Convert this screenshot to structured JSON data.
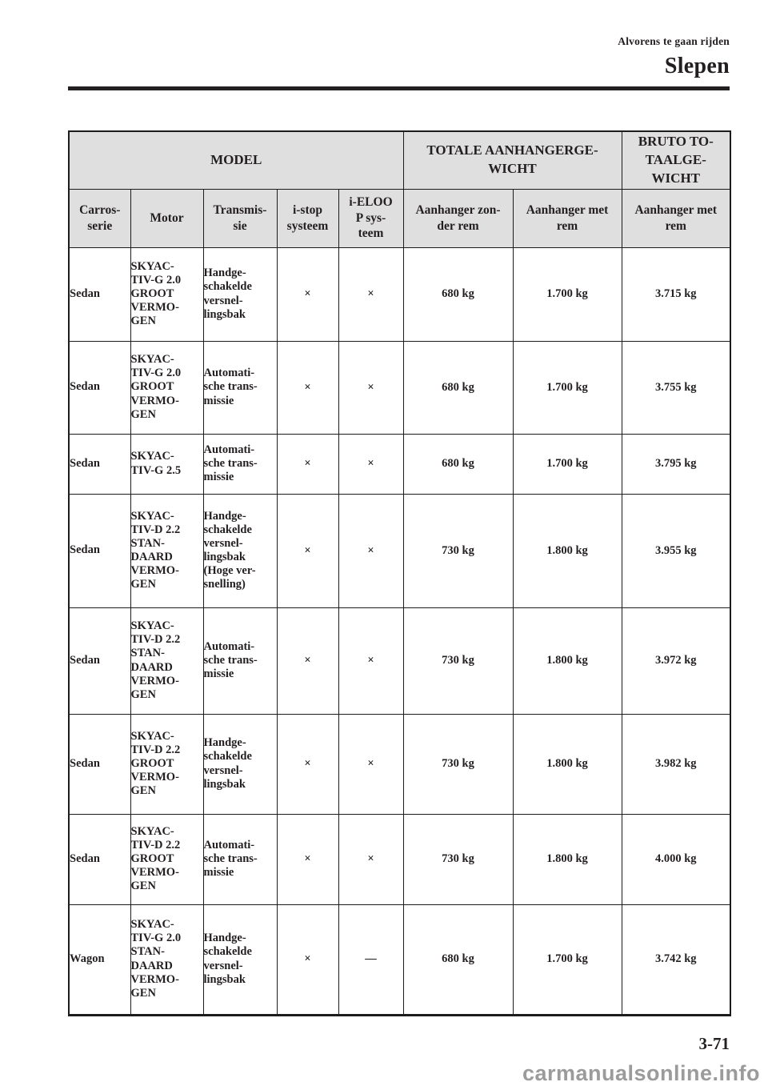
{
  "header": {
    "section": "Alvorens te gaan rijden",
    "title": "Slepen"
  },
  "footer": {
    "page_number": "3-71",
    "watermark": "carmanualsonline.info"
  },
  "colors": {
    "text": "#231f20",
    "table_border": "#1c1c1c",
    "header_cell_bg": "#dfdfdf",
    "watermark_gray": "#9b9b9b",
    "page_bg": "#ffffff"
  },
  "table": {
    "header_groups": [
      {
        "label": "MODEL"
      },
      {
        "label": "TOTALE AANHANGERGE-\nWICHT"
      },
      {
        "label": "BRUTO TO-\nTAALGE-\nWICHT"
      }
    ],
    "columns": [
      {
        "label": "Carros-\nserie"
      },
      {
        "label": "Motor"
      },
      {
        "label": "Transmis-\nsie"
      },
      {
        "label": "i-stop\nsysteem"
      },
      {
        "label": "i-ELOO\nP sys-\nteem"
      },
      {
        "label": "Aanhanger zon-\nder rem"
      },
      {
        "label": "Aanhanger met\nrem"
      },
      {
        "label": "Aanhanger met\nrem"
      }
    ],
    "rows": [
      {
        "carrosserie": "Sedan",
        "motor": "SKYAC-\nTIV-G 2.0\nGROOT\nVERMO-\nGEN",
        "transmissie": "Handge-\nschakelde\nversnel-\nlingsbak",
        "i_stop": "×",
        "i_eloop": "×",
        "zonder_rem": "680 kg",
        "met_rem": "1.700 kg",
        "bruto": "3.715 kg"
      },
      {
        "carrosserie": "Sedan",
        "motor": "SKYAC-\nTIV-G 2.0\nGROOT\nVERMO-\nGEN",
        "transmissie": "Automati-\nsche trans-\nmissie",
        "i_stop": "×",
        "i_eloop": "×",
        "zonder_rem": "680 kg",
        "met_rem": "1.700 kg",
        "bruto": "3.755 kg"
      },
      {
        "carrosserie": "Sedan",
        "motor": "SKYAC-\nTIV-G 2.5",
        "transmissie": "Automati-\nsche trans-\nmissie",
        "i_stop": "×",
        "i_eloop": "×",
        "zonder_rem": "680 kg",
        "met_rem": "1.700 kg",
        "bruto": "3.795 kg"
      },
      {
        "carrosserie": "Sedan",
        "motor": "SKYAC-\nTIV-D 2.2\nSTAN-\nDAARD\nVERMO-\nGEN",
        "transmissie": "Handge-\nschakelde\nversnel-\nlingsbak\n(Hoge ver-\nsnelling)",
        "i_stop": "×",
        "i_eloop": "×",
        "zonder_rem": "730 kg",
        "met_rem": "1.800 kg",
        "bruto": "3.955 kg"
      },
      {
        "carrosserie": "Sedan",
        "motor": "SKYAC-\nTIV-D 2.2\nSTAN-\nDAARD\nVERMO-\nGEN",
        "transmissie": "Automati-\nsche trans-\nmissie",
        "i_stop": "×",
        "i_eloop": "×",
        "zonder_rem": "730 kg",
        "met_rem": "1.800 kg",
        "bruto": "3.972 kg"
      },
      {
        "carrosserie": "Sedan",
        "motor": "SKYAC-\nTIV-D 2.2\nGROOT\nVERMO-\nGEN",
        "transmissie": "Handge-\nschakelde\nversnel-\nlingsbak",
        "i_stop": "×",
        "i_eloop": "×",
        "zonder_rem": "730 kg",
        "met_rem": "1.800 kg",
        "bruto": "3.982 kg"
      },
      {
        "carrosserie": "Sedan",
        "motor": "SKYAC-\nTIV-D 2.2\nGROOT\nVERMO-\nGEN",
        "transmissie": "Automati-\nsche trans-\nmissie",
        "i_stop": "×",
        "i_eloop": "×",
        "zonder_rem": "730 kg",
        "met_rem": "1.800 kg",
        "bruto": "4.000 kg"
      },
      {
        "carrosserie": "Wagon",
        "motor": "SKYAC-\nTIV-G 2.0\nSTAN-\nDAARD\nVERMO-\nGEN",
        "transmissie": "Handge-\nschakelde\nversnel-\nlingsbak",
        "i_stop": "×",
        "i_eloop": "—",
        "zonder_rem": "680 kg",
        "met_rem": "1.700 kg",
        "bruto": "3.742 kg"
      }
    ]
  }
}
